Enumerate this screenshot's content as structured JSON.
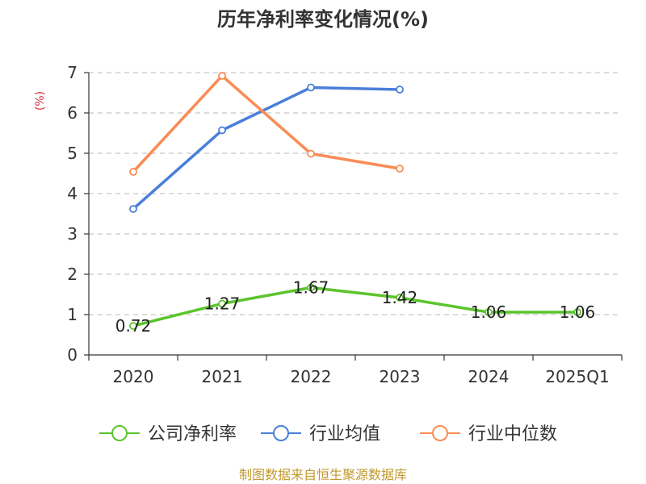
{
  "chart_data": {
    "type": "line",
    "title": "历年净利率变化情况(%)",
    "ylabel": "(%)",
    "xlabel": "",
    "categories": [
      "2020",
      "2021",
      "2022",
      "2023",
      "2024",
      "2025Q1"
    ],
    "ylim": [
      0,
      7
    ],
    "yticks": [
      0,
      1,
      2,
      3,
      4,
      5,
      6,
      7
    ],
    "grid": true,
    "legend_position": "bottom",
    "series": [
      {
        "name": "公司净利率",
        "color": "#5cc42d",
        "values": [
          0.72,
          1.27,
          1.67,
          1.42,
          1.06,
          1.06
        ],
        "labels": [
          "0.72",
          "1.27",
          "1.67",
          "1.42",
          "1.06",
          "1.06"
        ],
        "show_labels": true
      },
      {
        "name": "行业均值",
        "color": "#4a7fd9",
        "values": [
          3.62,
          5.57,
          6.63,
          6.58,
          null,
          null
        ],
        "show_labels": false
      },
      {
        "name": "行业中位数",
        "color": "#f98c55",
        "values": [
          4.54,
          6.92,
          4.99,
          4.62,
          null,
          null
        ],
        "show_labels": false
      }
    ]
  },
  "footer": {
    "source": "制图数据来自恒生聚源数据库"
  }
}
